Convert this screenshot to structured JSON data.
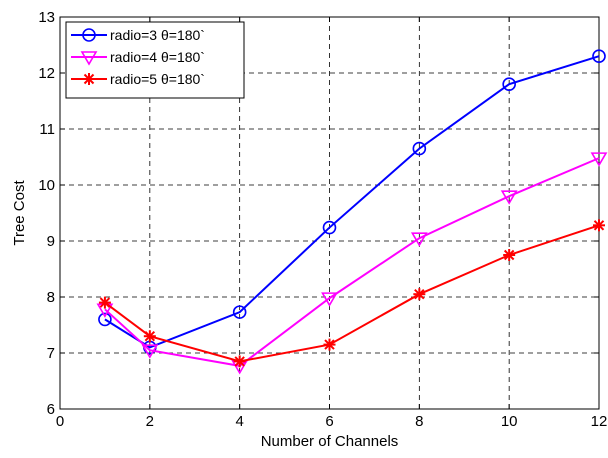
{
  "chart_data": {
    "type": "line",
    "title": "",
    "xlabel": "Number of Channels",
    "ylabel": "Tree Cost",
    "xlim": [
      0,
      12
    ],
    "ylim": [
      6,
      13
    ],
    "xticks": [
      0,
      2,
      4,
      6,
      8,
      10,
      12
    ],
    "yticks": [
      6,
      7,
      8,
      9,
      10,
      11,
      12,
      13
    ],
    "grid": true,
    "legend_position": "top-left",
    "series": [
      {
        "name": "radio=3 θ=180`",
        "color": "#0000ff",
        "marker": "circle",
        "x": [
          1,
          2,
          4,
          6,
          8,
          10,
          12
        ],
        "y": [
          7.6,
          7.1,
          7.73,
          9.24,
          10.65,
          11.8,
          12.3
        ]
      },
      {
        "name": "radio=4 θ=180`",
        "color": "#ff00ff",
        "marker": "triangle-down",
        "x": [
          1,
          2,
          4,
          6,
          8,
          10,
          12
        ],
        "y": [
          7.78,
          7.05,
          6.77,
          7.98,
          9.05,
          9.8,
          10.48
        ]
      },
      {
        "name": "radio=5 θ=180`",
        "color": "#ff0000",
        "marker": "asterisk",
        "x": [
          1,
          2,
          4,
          6,
          8,
          10,
          12
        ],
        "y": [
          7.9,
          7.3,
          6.85,
          7.15,
          8.05,
          8.75,
          9.28
        ]
      }
    ]
  }
}
